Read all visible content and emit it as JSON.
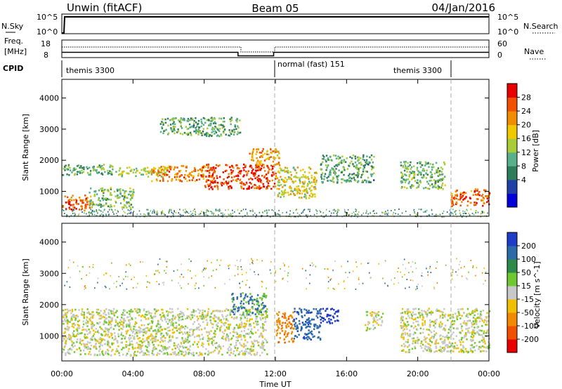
{
  "header": {
    "radar": "Unwin (fitACF)",
    "beam": "Beam 05",
    "date": "04/Jan/2016"
  },
  "nsky_panel": {
    "left_label": "N.Sky",
    "left_ticks": [
      "10^5",
      "10^0"
    ],
    "right_label": "N.Search",
    "right_ticks": [
      "10^5",
      "10^0"
    ]
  },
  "freq_panel": {
    "left_label_1": "Freq.",
    "left_label_2": "[MHz]",
    "left_ticks": [
      "18",
      "8"
    ],
    "right_label": "Nave",
    "right_ticks": [
      "60",
      "0"
    ]
  },
  "cpid_panel": {
    "label": "CPID",
    "modes": [
      {
        "name": "themis 3300",
        "start_hour": 0,
        "end_hour": 12
      },
      {
        "name": "normal (fast) 151",
        "start_hour": 12,
        "end_hour": 21.8
      },
      {
        "name": "themis 3300",
        "start_hour": 21.8,
        "end_hour": 24
      }
    ]
  },
  "power_panel": {
    "ylabel": "Slant Range [km]",
    "yticks": [
      "4000",
      "3000",
      "2000",
      "1000"
    ],
    "colorbar_label": "Power [dB]",
    "colorbar_ticks": [
      "28",
      "24",
      "20",
      "16",
      "12",
      "8",
      "4"
    ],
    "colors": [
      "#0000d8",
      "#2040a8",
      "#2e7d5a",
      "#58b08a",
      "#a8cc38",
      "#f0c800",
      "#f08c00",
      "#f05000",
      "#e80000"
    ]
  },
  "velocity_panel": {
    "ylabel": "Slant Range [km]",
    "yticks": [
      "4000",
      "3000",
      "2000",
      "1000"
    ],
    "colorbar_label": "Velocity [m s^-1]",
    "colorbar_ticks": [
      "200",
      "100",
      "50",
      "15",
      "-15",
      "-50",
      "-100",
      "-200"
    ],
    "colors": [
      "#1e3cc8",
      "#2c6aa8",
      "#2e8a4a",
      "#70c830",
      "#c8c8c8",
      "#f0c000",
      "#f08a00",
      "#f05000",
      "#e80000"
    ]
  },
  "xaxis": {
    "label": "Time UT",
    "ticks": [
      "00:00",
      "04:00",
      "08:00",
      "12:00",
      "16:00",
      "20:00",
      "00:00"
    ]
  },
  "chart_data": {
    "type": "heatmap",
    "title": "Unwin (fitACF) Beam 05 04/Jan/2016",
    "xlabel": "Time UT",
    "ylabel": "Slant Range [km]",
    "xlim_hours": [
      0,
      24
    ],
    "ylim_km": [
      200,
      4600
    ],
    "power_scale_db": [
      0,
      32
    ],
    "velocity_scale": [
      -200,
      200
    ],
    "cpid_change_hours": [
      12,
      21.8
    ],
    "frequency_mhz_approx": [
      {
        "start_hour": 0,
        "end_hour": 9.9,
        "value": 11
      },
      {
        "start_hour": 9.9,
        "end_hour": 11.9,
        "value": 9
      },
      {
        "start_hour": 11.9,
        "end_hour": 24,
        "value": 11
      }
    ],
    "nsky_nsearch_approx": {
      "value": "10^5",
      "start_hour": 0.3
    },
    "power_regions": [
      {
        "t0": 0.0,
        "t1": 1.6,
        "r0": 400,
        "r1": 900,
        "db": 26
      },
      {
        "t0": 1.5,
        "t1": 4.0,
        "r0": 500,
        "r1": 1150,
        "db": 14
      },
      {
        "t0": 0.0,
        "t1": 3.0,
        "r0": 1550,
        "r1": 1900,
        "db": 12
      },
      {
        "t0": 3.0,
        "t1": 6.0,
        "r0": 1500,
        "r1": 1800,
        "db": 16
      },
      {
        "t0": 5.0,
        "t1": 8.5,
        "r0": 1350,
        "r1": 1850,
        "db": 24
      },
      {
        "t0": 8.0,
        "t1": 12.0,
        "r0": 1100,
        "r1": 1900,
        "db": 28
      },
      {
        "t0": 10.5,
        "t1": 12.2,
        "r0": 1800,
        "r1": 2400,
        "db": 22
      },
      {
        "t0": 5.5,
        "t1": 10.0,
        "r0": 2800,
        "r1": 3400,
        "db": 12
      },
      {
        "t0": 12.0,
        "t1": 14.3,
        "r0": 800,
        "r1": 1800,
        "db": 18
      },
      {
        "t0": 14.5,
        "t1": 17.5,
        "r0": 1300,
        "r1": 2200,
        "db": 12
      },
      {
        "t0": 19.0,
        "t1": 21.5,
        "r0": 1100,
        "r1": 2000,
        "db": 13
      },
      {
        "t0": 21.8,
        "t1": 24.0,
        "r0": 550,
        "r1": 1100,
        "db": 26
      }
    ],
    "velocity_regions": [
      {
        "t0": 0.0,
        "t1": 11.5,
        "r0": 400,
        "r1": 1900,
        "v": 0
      },
      {
        "t0": 9.5,
        "t1": 11.5,
        "r0": 1700,
        "r1": 2400,
        "v": 60
      },
      {
        "t0": 12.0,
        "t1": 13.0,
        "r0": 800,
        "r1": 1800,
        "v": -80
      },
      {
        "t0": 13.0,
        "t1": 14.5,
        "r0": 900,
        "r1": 1900,
        "v": 80
      },
      {
        "t0": 14.5,
        "t1": 15.5,
        "r0": 1400,
        "r1": 1900,
        "v": 180
      },
      {
        "t0": 17.0,
        "t1": 18.0,
        "r0": 1200,
        "r1": 1800,
        "v": 0
      },
      {
        "t0": 19.0,
        "t1": 24.0,
        "r0": 500,
        "r1": 1900,
        "v": 0
      }
    ]
  }
}
